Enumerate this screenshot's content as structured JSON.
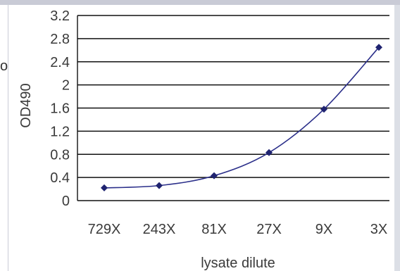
{
  "stray_text": "o",
  "chart_data": {
    "type": "line",
    "categories": [
      "729X",
      "243X",
      "81X",
      "27X",
      "9X",
      "3X"
    ],
    "series": [
      {
        "values": [
          0.22,
          0.26,
          0.43,
          0.83,
          1.58,
          2.65
        ]
      }
    ],
    "ylim": [
      0,
      3.2
    ],
    "yticks": [
      "0",
      "0.4",
      "0.8",
      "1.2",
      "1.6",
      "2",
      "2.4",
      "2.8",
      "3.2"
    ],
    "xlabel": "lysate dilute",
    "ylabel": "OD490",
    "grid": true,
    "colors": {
      "line": "#2b2f8a",
      "marker": "#1f2370",
      "grid": "#111111",
      "text": "#3a3a3a"
    }
  }
}
